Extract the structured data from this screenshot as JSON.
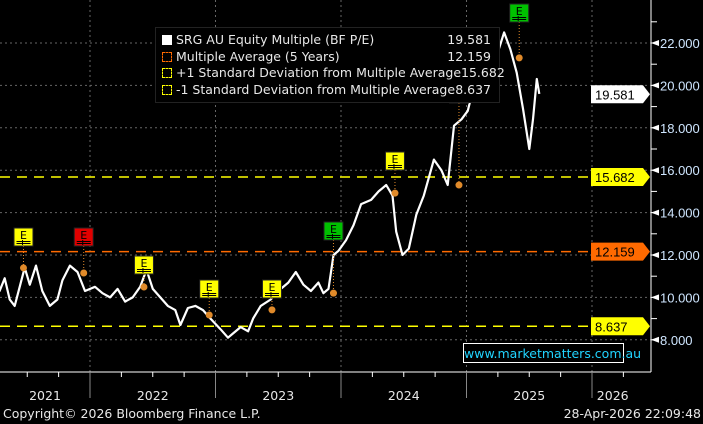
{
  "chart_data": {
    "type": "line",
    "title": "",
    "xlabel": "",
    "ylabel": "",
    "xlim": [
      2020.72,
      2026.33
    ],
    "ylim": [
      7.2,
      23.8
    ],
    "grid": true,
    "legend_position": "top-center",
    "y_ticks": [
      "8.000",
      "10.000",
      "12.000",
      "14.000",
      "16.000",
      "18.000",
      "20.000",
      "22.000"
    ],
    "y_tick_values": [
      8,
      10,
      12,
      14,
      16,
      18,
      20,
      22
    ],
    "x_ticks": [
      "2021",
      "2022",
      "2023",
      "2024",
      "2025",
      "2026"
    ],
    "series": [
      {
        "name": "SRG AU Equity Multiple (BF P/E)",
        "value_label": "19.581",
        "color": "#ffffff",
        "points": [
          [
            2020.72,
            11.1
          ],
          [
            2020.76,
            12.2
          ],
          [
            2020.8,
            12.5
          ],
          [
            2020.84,
            11.5
          ],
          [
            2020.88,
            12.2
          ],
          [
            2020.92,
            12.5
          ],
          [
            2020.96,
            12.9
          ],
          [
            2021.0,
            11.9
          ],
          [
            2021.04,
            11.5
          ],
          [
            2021.08,
            11.0
          ],
          [
            2021.13,
            10.8
          ],
          [
            2021.18,
            11.3
          ],
          [
            2021.23,
            10.6
          ],
          [
            2021.28,
            10.3
          ],
          [
            2021.32,
            10.9
          ],
          [
            2021.36,
            9.9
          ],
          [
            2021.4,
            9.6
          ],
          [
            2021.44,
            10.5
          ],
          [
            2021.48,
            11.4
          ],
          [
            2021.52,
            10.6
          ],
          [
            2021.57,
            11.5
          ],
          [
            2021.62,
            10.3
          ],
          [
            2021.68,
            9.6
          ],
          [
            2021.74,
            9.9
          ],
          [
            2021.78,
            10.8
          ],
          [
            2021.84,
            11.5
          ],
          [
            2021.9,
            11.2
          ],
          [
            2021.96,
            10.3
          ],
          [
            2022.04,
            10.5
          ],
          [
            2022.1,
            10.2
          ],
          [
            2022.16,
            10.0
          ],
          [
            2022.22,
            10.4
          ],
          [
            2022.28,
            9.8
          ],
          [
            2022.34,
            10.0
          ],
          [
            2022.4,
            10.5
          ],
          [
            2022.45,
            11.3
          ],
          [
            2022.5,
            10.4
          ],
          [
            2022.56,
            10.0
          ],
          [
            2022.62,
            9.6
          ],
          [
            2022.68,
            9.4
          ],
          [
            2022.72,
            8.7
          ],
          [
            2022.78,
            9.5
          ],
          [
            2022.84,
            9.6
          ],
          [
            2022.9,
            9.4
          ],
          [
            2022.96,
            9.0
          ],
          [
            2023.04,
            8.5
          ],
          [
            2023.1,
            8.1
          ],
          [
            2023.14,
            8.3
          ],
          [
            2023.2,
            8.6
          ],
          [
            2023.26,
            8.4
          ],
          [
            2023.3,
            9.0
          ],
          [
            2023.36,
            9.6
          ],
          [
            2023.44,
            9.9
          ],
          [
            2023.5,
            10.3
          ],
          [
            2023.58,
            10.7
          ],
          [
            2023.64,
            11.2
          ],
          [
            2023.7,
            10.6
          ],
          [
            2023.76,
            10.3
          ],
          [
            2023.82,
            10.7
          ],
          [
            2023.86,
            10.2
          ],
          [
            2023.9,
            10.4
          ],
          [
            2023.94,
            12.0
          ],
          [
            2023.98,
            12.2
          ],
          [
            2024.04,
            12.7
          ],
          [
            2024.1,
            13.4
          ],
          [
            2024.16,
            14.4
          ],
          [
            2024.24,
            14.6
          ],
          [
            2024.3,
            15.0
          ],
          [
            2024.36,
            15.3
          ],
          [
            2024.41,
            14.8
          ],
          [
            2024.44,
            13.1
          ],
          [
            2024.49,
            12.0
          ],
          [
            2024.54,
            12.3
          ],
          [
            2024.6,
            13.9
          ],
          [
            2024.66,
            14.8
          ],
          [
            2024.74,
            16.5
          ],
          [
            2024.8,
            16.0
          ],
          [
            2024.85,
            15.3
          ],
          [
            2024.9,
            18.1
          ],
          [
            2024.96,
            18.4
          ],
          [
            2025.01,
            18.8
          ],
          [
            2025.06,
            20.0
          ],
          [
            2025.12,
            20.7
          ],
          [
            2025.17,
            19.5
          ],
          [
            2025.23,
            21.2
          ],
          [
            2025.3,
            22.5
          ],
          [
            2025.35,
            21.7
          ],
          [
            2025.4,
            20.6
          ],
          [
            2025.45,
            18.9
          ],
          [
            2025.5,
            17.0
          ],
          [
            2025.53,
            18.4
          ],
          [
            2025.56,
            20.3
          ],
          [
            2025.58,
            19.6
          ]
        ]
      },
      {
        "name": "Multiple Average (5 Years)",
        "value_label": "12.159",
        "value": 12.159,
        "color": "#ff6a00"
      },
      {
        "name": "+1 Standard Deviation from Multiple Average",
        "value_label": "15.682",
        "value": 15.682,
        "color": "#ffff00"
      },
      {
        "name": "-1 Standard Deviation from Multiple Average",
        "value_label": "8.637",
        "value": 8.637,
        "color": "#ffff00"
      }
    ],
    "earnings_events": [
      {
        "label": "E",
        "x": 2020.97,
        "y": 12.47,
        "color": "#e00000"
      },
      {
        "label": "E",
        "x": 2021.47,
        "y": 11.39,
        "color": "#ffff00"
      },
      {
        "label": "E",
        "x": 2021.95,
        "y": 11.15,
        "color": "#e00000"
      },
      {
        "label": "E",
        "x": 2022.43,
        "y": 10.49,
        "color": "#ffff00"
      },
      {
        "label": "E",
        "x": 2022.95,
        "y": 9.17,
        "color": "#ffff00"
      },
      {
        "label": "E",
        "x": 2023.45,
        "y": 9.41,
        "color": "#ffff00"
      },
      {
        "label": "E",
        "x": 2023.94,
        "y": 10.2,
        "color": "#00c000"
      },
      {
        "label": "E",
        "x": 2024.43,
        "y": 14.92,
        "color": "#ffff00"
      },
      {
        "label": "E",
        "x": 2024.94,
        "y": 15.3,
        "color": "#00c000"
      },
      {
        "label": "E",
        "x": 2025.42,
        "y": 21.3,
        "color": "#00c000"
      }
    ]
  },
  "watermark": "www.marketmatters.com.au",
  "footer": {
    "copyright": "Copyright© 2026 Bloomberg Finance L.P.",
    "timestamp": "28-Apr-2026 22:09:48"
  }
}
